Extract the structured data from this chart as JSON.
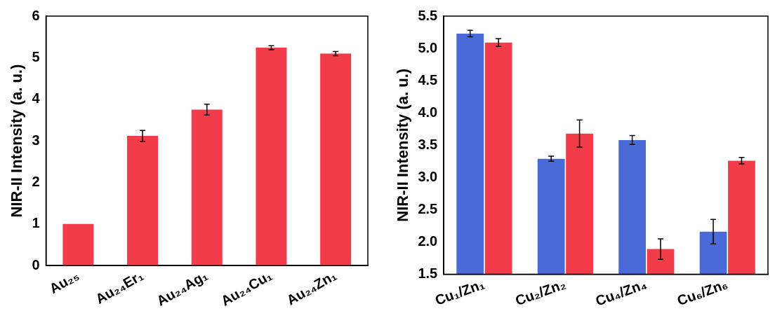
{
  "chart_data": [
    {
      "type": "bar",
      "ylabel": "NIR-II Intensity (a. u.)",
      "categories": [
        "Au₂₅",
        "Au₂₄Er₁",
        "Au₂₄Ag₁",
        "Au₂₄Cu₁",
        "Au₂₄Zn₁"
      ],
      "values": [
        1.0,
        3.12,
        3.75,
        5.24,
        5.1
      ],
      "errors": [
        null,
        0.13,
        0.13,
        0.05,
        0.05
      ],
      "color": "#f23c4a",
      "ylim": [
        0,
        6
      ],
      "yticks": [
        0,
        1,
        2,
        3,
        4,
        5,
        6
      ],
      "grid": false
    },
    {
      "type": "bar",
      "ylabel": "NIR-II Intensity (a. u.)",
      "categories": [
        "Cu₁/Zn₁",
        "Cu₂/Zn₂",
        "Cu₄/Zn₄",
        "Cu₆/Zn₆"
      ],
      "series": [
        {
          "color": "#4a6ad8",
          "values": [
            5.23,
            3.29,
            3.58,
            2.16
          ],
          "errors": [
            0.05,
            0.04,
            0.07,
            0.19
          ]
        },
        {
          "color": "#f23c4a",
          "values": [
            5.09,
            3.68,
            1.89,
            3.26
          ],
          "errors": [
            0.06,
            0.21,
            0.16,
            0.05
          ]
        }
      ],
      "ylim": [
        1.5,
        5.5
      ],
      "yticks": [
        1.5,
        {
          "value": 2,
          "label": "2.0"
        },
        2.5,
        {
          "value": 3,
          "label": "3.0"
        },
        3.5,
        {
          "value": 4,
          "label": "4.0"
        },
        4.5,
        {
          "value": 5,
          "label": "5.0"
        },
        5.5
      ],
      "grid": false
    }
  ]
}
